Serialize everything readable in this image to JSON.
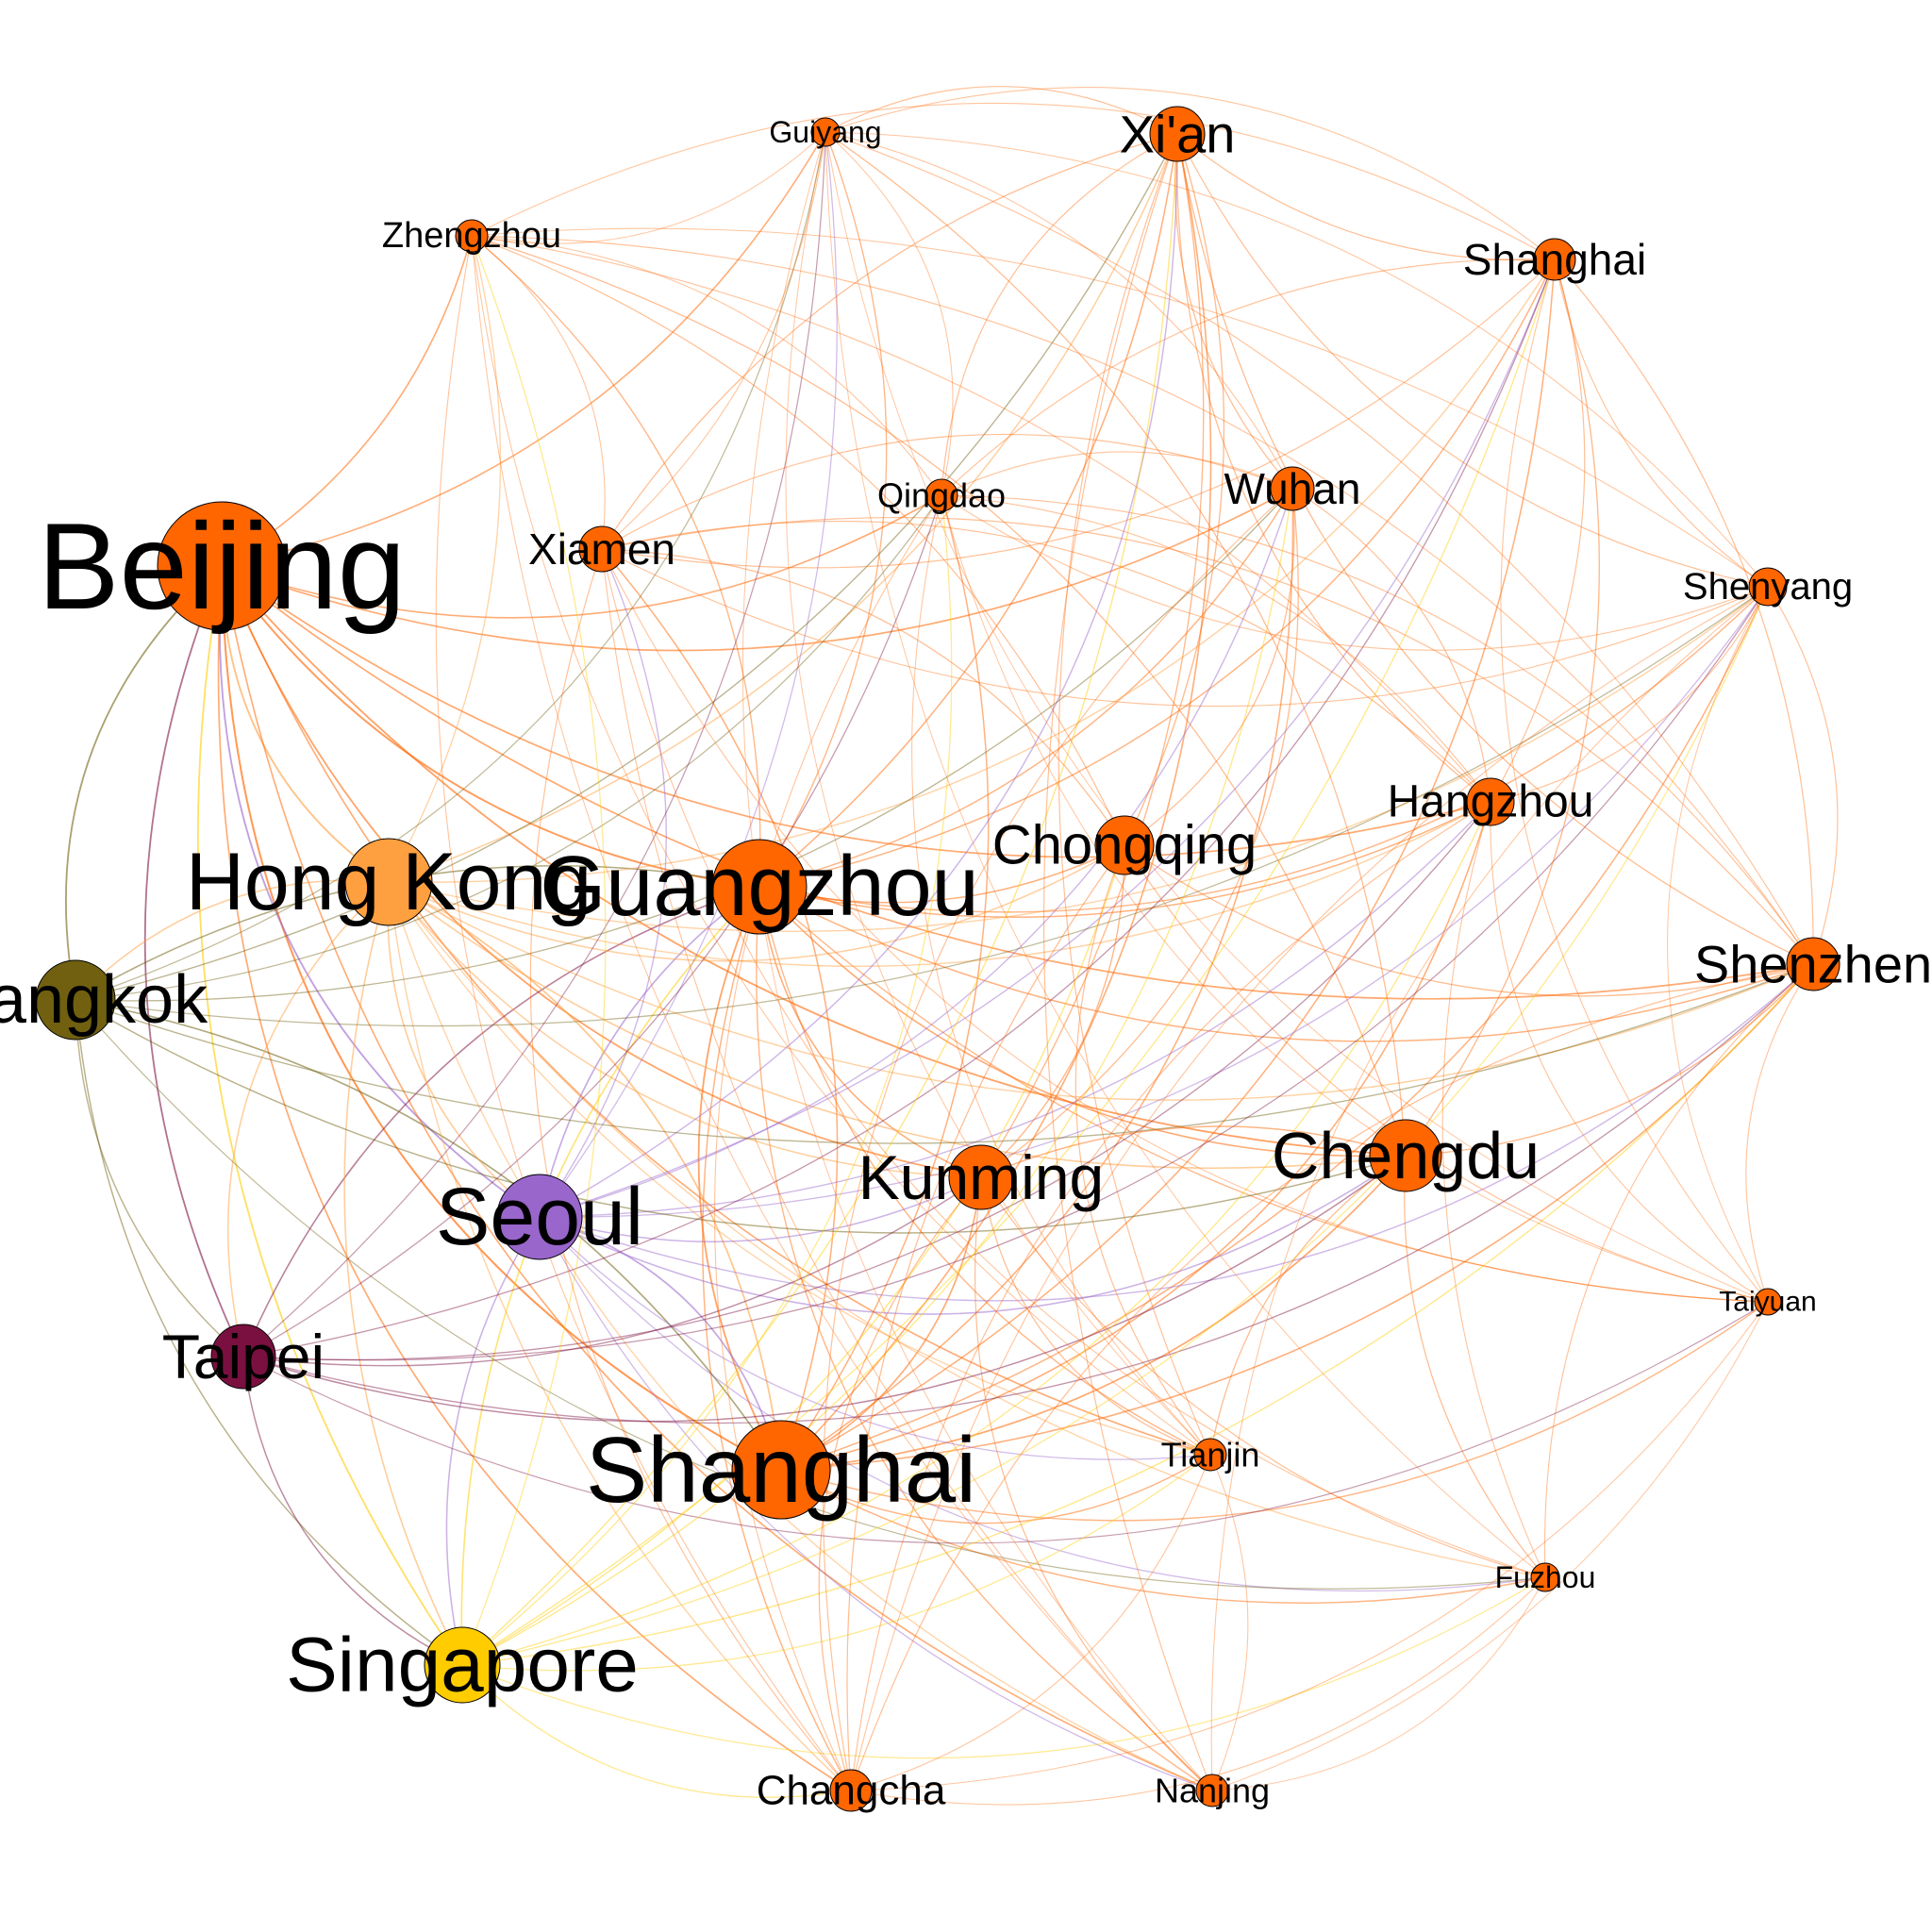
{
  "graph": {
    "node_stroke": "#000000",
    "nodes": [
      {
        "id": "beijing",
        "label": "Beijing",
        "color": "#ff6600",
        "weight": 1.0
      },
      {
        "id": "guangzhou",
        "label": "Guangzhou",
        "color": "#ff6600",
        "weight": 0.72
      },
      {
        "id": "shanghai-main",
        "label": "Shanghai",
        "color": "#ff6600",
        "weight": 0.8
      },
      {
        "id": "hongkong",
        "label": "Hong Kong",
        "color": "#ffa040",
        "weight": 0.66
      },
      {
        "id": "seoul",
        "label": "Seoul",
        "color": "#9966cc",
        "weight": 0.6
      },
      {
        "id": "bangkok",
        "label": "Bangkok",
        "color": "#706010",
        "weight": 0.52
      },
      {
        "id": "taipei",
        "label": "Taipei",
        "color": "#7a1040",
        "weight": 0.5
      },
      {
        "id": "singapore",
        "label": "Singapore",
        "color": "#ffcc00",
        "weight": 0.56
      },
      {
        "id": "chengdu",
        "label": "Chengdu",
        "color": "#ff6600",
        "weight": 0.56
      },
      {
        "id": "kunming",
        "label": "Kunming",
        "color": "#ff6600",
        "weight": 0.5
      },
      {
        "id": "chongqing",
        "label": "Chongqing",
        "color": "#ff6600",
        "weight": 0.46
      },
      {
        "id": "xian",
        "label": "Xi'an",
        "color": "#ff6600",
        "weight": 0.44
      },
      {
        "id": "hangzhou",
        "label": "Hangzhou",
        "color": "#ff6600",
        "weight": 0.38
      },
      {
        "id": "shenzhen",
        "label": "Shenzhen",
        "color": "#ff6600",
        "weight": 0.4
      },
      {
        "id": "wuhan",
        "label": "Wuhan",
        "color": "#ff6600",
        "weight": 0.36
      },
      {
        "id": "xiamen",
        "label": "Xiamen",
        "color": "#ff6600",
        "weight": 0.36
      },
      {
        "id": "shanghai-2",
        "label": "Shanghai",
        "color": "#ff6600",
        "weight": 0.36
      },
      {
        "id": "qingdao",
        "label": "Qingdao",
        "color": "#ff6600",
        "weight": 0.3
      },
      {
        "id": "shenyang",
        "label": "Shenyang",
        "color": "#ff6600",
        "weight": 0.3
      },
      {
        "id": "zhengzhou",
        "label": "Zhengzhou",
        "color": "#ff6600",
        "weight": 0.28
      },
      {
        "id": "guiyang",
        "label": "Guiyang",
        "color": "#ff6600",
        "weight": 0.26
      },
      {
        "id": "changcha",
        "label": "Changcha",
        "color": "#ff6600",
        "weight": 0.34
      },
      {
        "id": "nanjing",
        "label": "Nanjing",
        "color": "#ff6600",
        "weight": 0.28
      },
      {
        "id": "tianjin",
        "label": "Tianjin",
        "color": "#ff6600",
        "weight": 0.28
      },
      {
        "id": "fuzhou",
        "label": "Fuzhou",
        "color": "#ff6600",
        "weight": 0.26
      },
      {
        "id": "taiyuan",
        "label": "Taiyuan",
        "color": "#ff6600",
        "weight": 0.24
      }
    ]
  }
}
